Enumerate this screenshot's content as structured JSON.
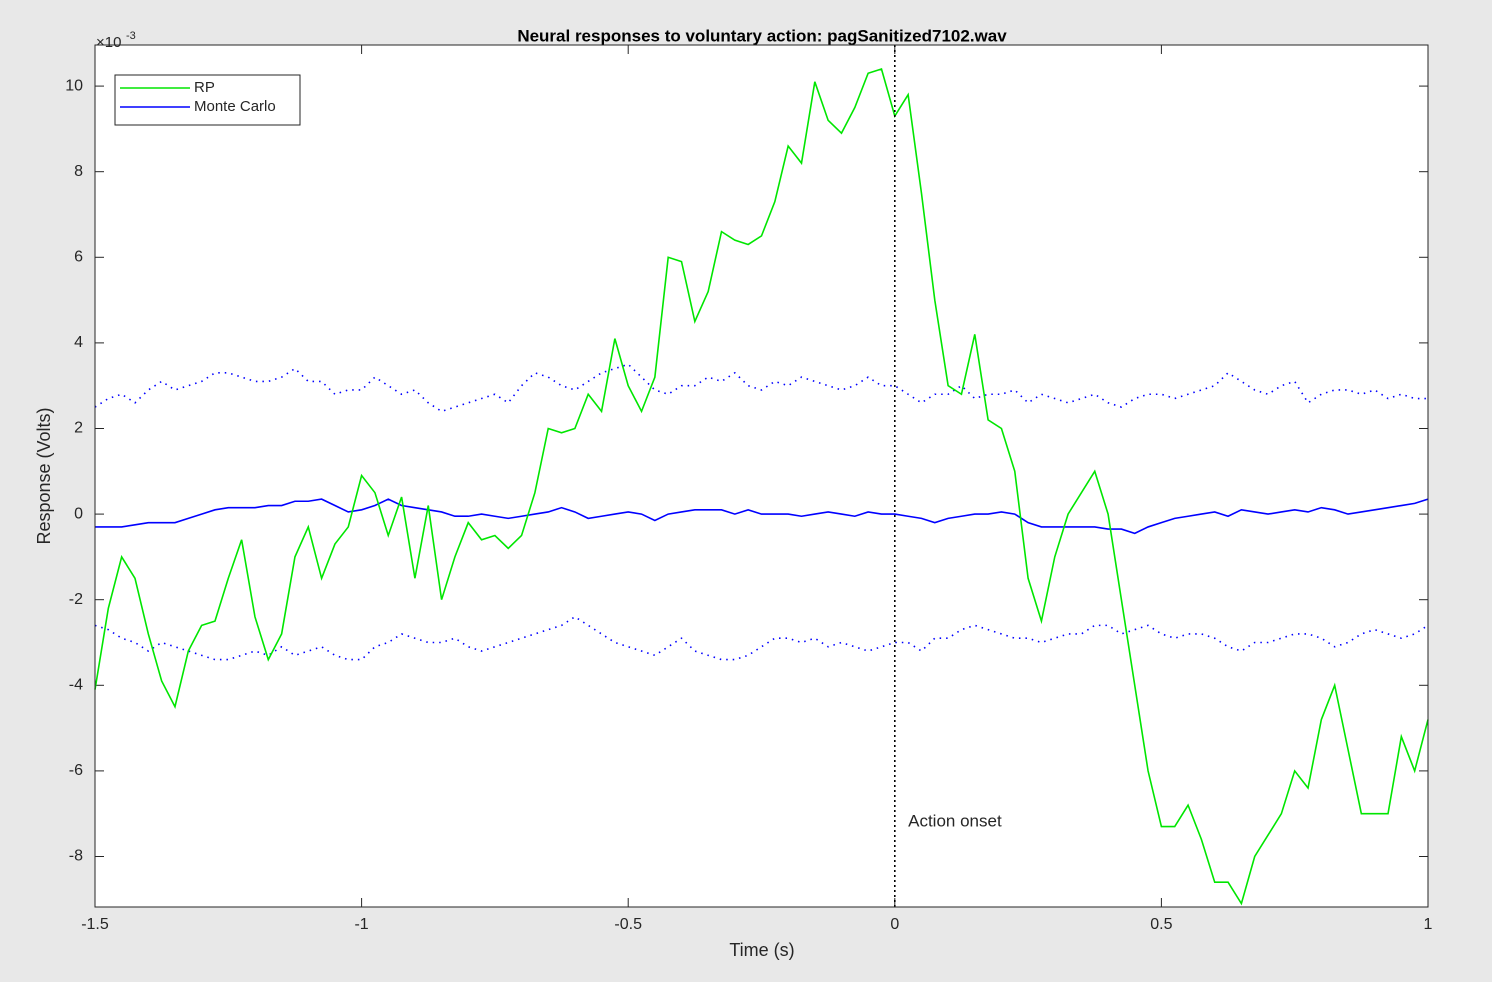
{
  "chart_data": {
    "type": "line",
    "title": "Neural responses to voluntary action: pagSanitized7102.wav",
    "x_label": "Time (s)",
    "y_label": "Response (Volts)",
    "y_multiplier": {
      "base": "×10",
      "exponent": "-3"
    },
    "xlim": [
      -1.5,
      1
    ],
    "ylim": [
      -9.18,
      10.96
    ],
    "xticks": [
      -1.5,
      -1,
      -0.5,
      0,
      0.5,
      1
    ],
    "yticks": [
      -8,
      -6,
      -4,
      -2,
      0,
      2,
      4,
      6,
      8,
      10
    ],
    "legend_position": "top-left",
    "x": [
      -1.5,
      -1.475,
      -1.45,
      -1.425,
      -1.4,
      -1.375,
      -1.35,
      -1.325,
      -1.3,
      -1.275,
      -1.25,
      -1.225,
      -1.2,
      -1.175,
      -1.15,
      -1.125,
      -1.1,
      -1.075,
      -1.05,
      -1.025,
      -1,
      -0.975,
      -0.95,
      -0.925,
      -0.9,
      -0.875,
      -0.85,
      -0.825,
      -0.8,
      -0.775,
      -0.75,
      -0.725,
      -0.7,
      -0.675,
      -0.65,
      -0.625,
      -0.6,
      -0.575,
      -0.55,
      -0.525,
      -0.5,
      -0.475,
      -0.45,
      -0.425,
      -0.4,
      -0.375,
      -0.35,
      -0.325,
      -0.3,
      -0.275,
      -0.25,
      -0.225,
      -0.2,
      -0.175,
      -0.15,
      -0.125,
      -0.1,
      -0.075,
      -0.05,
      -0.025,
      0,
      0.025,
      0.05,
      0.075,
      0.1,
      0.125,
      0.15,
      0.175,
      0.2,
      0.225,
      0.25,
      0.275,
      0.3,
      0.325,
      0.35,
      0.375,
      0.4,
      0.425,
      0.45,
      0.475,
      0.5,
      0.525,
      0.55,
      0.575,
      0.6,
      0.625,
      0.65,
      0.675,
      0.7,
      0.725,
      0.75,
      0.775,
      0.8,
      0.825,
      0.85,
      0.875,
      0.9,
      0.925,
      0.95,
      0.975,
      1
    ],
    "series": [
      {
        "name": "RP",
        "color": "#00e600",
        "values": [
          -4.1,
          -2.2,
          -1.0,
          -1.5,
          -2.8,
          -3.9,
          -4.5,
          -3.2,
          -2.6,
          -2.5,
          -1.5,
          -0.6,
          -2.4,
          -3.4,
          -2.8,
          -1.0,
          -0.3,
          -1.5,
          -0.7,
          -0.3,
          0.9,
          0.5,
          -0.5,
          0.4,
          -1.5,
          0.2,
          -2.0,
          -1.0,
          -0.2,
          -0.6,
          -0.5,
          -0.8,
          -0.5,
          0.5,
          2.0,
          1.9,
          2.0,
          2.8,
          2.4,
          4.1,
          3.0,
          2.4,
          3.2,
          6.0,
          5.9,
          4.5,
          5.2,
          6.6,
          6.4,
          6.3,
          6.5,
          7.3,
          8.6,
          8.2,
          10.1,
          9.2,
          8.9,
          9.5,
          10.3,
          10.4,
          9.3,
          9.8,
          7.5,
          5.0,
          3.0,
          2.8,
          4.2,
          2.2,
          2.0,
          1.0,
          -1.5,
          -2.5,
          -1.0,
          0.0,
          0.5,
          1.0,
          0.0,
          -2.0,
          -4.0,
          -6.0,
          -7.3,
          -7.3,
          -6.8,
          -7.6,
          -8.6,
          -8.6,
          -9.1,
          -8.0,
          -7.5,
          -7.0,
          -6.0,
          -6.4,
          -4.8,
          -4.0,
          -5.5,
          -7.0,
          -7.0,
          -7.0,
          -5.2,
          -6.0,
          -4.8
        ]
      },
      {
        "name": "Monte Carlo",
        "color": "#0000ff",
        "values": [
          -0.3,
          -0.3,
          -0.3,
          -0.25,
          -0.2,
          -0.2,
          -0.2,
          -0.1,
          0.0,
          0.1,
          0.15,
          0.15,
          0.15,
          0.2,
          0.2,
          0.3,
          0.3,
          0.35,
          0.2,
          0.05,
          0.1,
          0.2,
          0.35,
          0.2,
          0.15,
          0.1,
          0.05,
          -0.05,
          -0.05,
          0.0,
          -0.05,
          -0.1,
          -0.05,
          0.0,
          0.05,
          0.15,
          0.05,
          -0.1,
          -0.05,
          0.0,
          0.05,
          0.0,
          -0.15,
          0.0,
          0.05,
          0.1,
          0.1,
          0.1,
          0.0,
          0.1,
          0.0,
          0.0,
          0.0,
          -0.05,
          0.0,
          0.05,
          0.0,
          -0.05,
          0.05,
          0.0,
          0.0,
          -0.05,
          -0.1,
          -0.2,
          -0.1,
          -0.05,
          0.0,
          0.0,
          0.05,
          0.0,
          -0.2,
          -0.3,
          -0.3,
          -0.3,
          -0.3,
          -0.3,
          -0.35,
          -0.35,
          -0.45,
          -0.3,
          -0.2,
          -0.1,
          -0.05,
          0.0,
          0.05,
          -0.05,
          0.1,
          0.05,
          0.0,
          0.05,
          0.1,
          0.05,
          0.15,
          0.1,
          0.0,
          0.05,
          0.1,
          0.15,
          0.2,
          0.25,
          0.35
        ],
        "upper_values": [
          2.5,
          2.7,
          2.8,
          2.6,
          2.9,
          3.1,
          2.9,
          3.0,
          3.1,
          3.3,
          3.3,
          3.2,
          3.1,
          3.1,
          3.2,
          3.4,
          3.1,
          3.1,
          2.8,
          2.9,
          2.9,
          3.2,
          3.0,
          2.8,
          2.9,
          2.6,
          2.4,
          2.5,
          2.6,
          2.7,
          2.8,
          2.6,
          3.0,
          3.3,
          3.2,
          3.0,
          2.9,
          3.1,
          3.3,
          3.4,
          3.5,
          3.2,
          2.9,
          2.8,
          3.0,
          3.0,
          3.2,
          3.1,
          3.3,
          3.0,
          2.9,
          3.1,
          3.0,
          3.2,
          3.1,
          3.0,
          2.9,
          3.0,
          3.2,
          3.0,
          3.0,
          2.8,
          2.6,
          2.8,
          2.8,
          3.0,
          2.7,
          2.8,
          2.8,
          2.9,
          2.6,
          2.8,
          2.7,
          2.6,
          2.7,
          2.8,
          2.6,
          2.5,
          2.7,
          2.8,
          2.8,
          2.7,
          2.8,
          2.9,
          3.0,
          3.3,
          3.1,
          2.9,
          2.8,
          3.0,
          3.1,
          2.6,
          2.8,
          2.9,
          2.9,
          2.8,
          2.9,
          2.7,
          2.8,
          2.7,
          2.7
        ],
        "lower_values": [
          -2.6,
          -2.7,
          -2.9,
          -3.0,
          -3.2,
          -3.0,
          -3.1,
          -3.2,
          -3.3,
          -3.4,
          -3.4,
          -3.3,
          -3.2,
          -3.3,
          -3.1,
          -3.3,
          -3.2,
          -3.1,
          -3.3,
          -3.4,
          -3.4,
          -3.1,
          -3.0,
          -2.8,
          -2.9,
          -3.0,
          -3.0,
          -2.9,
          -3.1,
          -3.2,
          -3.1,
          -3.0,
          -2.9,
          -2.8,
          -2.7,
          -2.6,
          -2.4,
          -2.6,
          -2.8,
          -3.0,
          -3.1,
          -3.2,
          -3.3,
          -3.1,
          -2.9,
          -3.2,
          -3.3,
          -3.4,
          -3.4,
          -3.3,
          -3.1,
          -2.9,
          -2.9,
          -3.0,
          -2.9,
          -3.1,
          -3.0,
          -3.1,
          -3.2,
          -3.1,
          -3.0,
          -3.0,
          -3.2,
          -2.9,
          -2.9,
          -2.7,
          -2.6,
          -2.7,
          -2.8,
          -2.9,
          -2.9,
          -3.0,
          -2.9,
          -2.8,
          -2.8,
          -2.6,
          -2.6,
          -2.8,
          -2.7,
          -2.6,
          -2.8,
          -2.9,
          -2.8,
          -2.8,
          -2.9,
          -3.1,
          -3.2,
          -3.0,
          -3.0,
          -2.9,
          -2.8,
          -2.8,
          -2.9,
          -3.1,
          -3.0,
          -2.8,
          -2.7,
          -2.8,
          -2.9,
          -2.8,
          -2.6
        ]
      }
    ],
    "onset_line": 0,
    "annotation": {
      "text": "Action onset",
      "x": 0.025,
      "y": -7.2
    }
  }
}
